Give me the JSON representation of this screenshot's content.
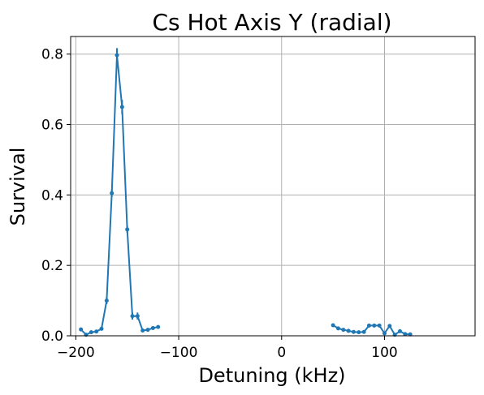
{
  "chart_data": {
    "type": "line",
    "title": "Cs Hot Axis Y (radial)",
    "xlabel": "Detuning (kHz)",
    "ylabel": "Survival",
    "xlim": [
      -205,
      188
    ],
    "ylim": [
      0,
      0.85
    ],
    "grid": true,
    "x_ticks": [
      -200,
      -100,
      0,
      100
    ],
    "x_tick_labels": [
      "−200",
      "−100",
      "0",
      "100"
    ],
    "y_ticks": [
      0.0,
      0.2,
      0.4,
      0.6,
      0.8
    ],
    "y_tick_labels": [
      "0.0",
      "0.2",
      "0.4",
      "0.6",
      "0.8"
    ],
    "colors": {
      "series": "#1f77b4",
      "grid": "#b0b0b0"
    },
    "series": [
      {
        "x": [
          -195,
          -190,
          -185,
          -180,
          -175,
          -170,
          -165,
          -160,
          -155,
          -150,
          -145,
          -140,
          -135,
          -130,
          -125,
          -120,
          -115,
          -110,
          -105,
          50,
          55,
          60,
          65,
          70,
          75,
          80,
          85,
          90,
          95,
          100,
          105,
          110,
          115,
          120,
          125,
          130,
          135,
          140,
          145,
          150,
          155,
          160,
          165,
          170
        ],
        "y": [
          0.018,
          0.003,
          0.01,
          0.012,
          0.02,
          0.1,
          0.405,
          0.797,
          0.65,
          0.302,
          0.056,
          0.056,
          0.015,
          0.017,
          0.022,
          0.025,
          null,
          null,
          null,
          0.03,
          0.021,
          0.017,
          0.014,
          0.011,
          0.01,
          0.011,
          0.029,
          0.029,
          0.029,
          0.007,
          0.028,
          0.003,
          0.013,
          0.005,
          0.004,
          null,
          null,
          null,
          null,
          null,
          null,
          null,
          null,
          null
        ],
        "err": [
          0.005,
          0.002,
          0.003,
          0.003,
          0.004,
          0.01,
          0.01,
          0.02,
          0.02,
          0.01,
          0.01,
          0.01,
          0.004,
          0.004,
          0.004,
          0.004,
          null,
          null,
          null,
          0.004,
          0.003,
          0.003,
          0.003,
          0.003,
          0.003,
          0.003,
          0.005,
          0.005,
          0.005,
          0.003,
          0.005,
          0.002,
          0.003,
          0.002,
          0.002,
          null,
          null,
          null,
          null,
          null,
          null,
          null,
          null,
          null
        ]
      }
    ]
  }
}
